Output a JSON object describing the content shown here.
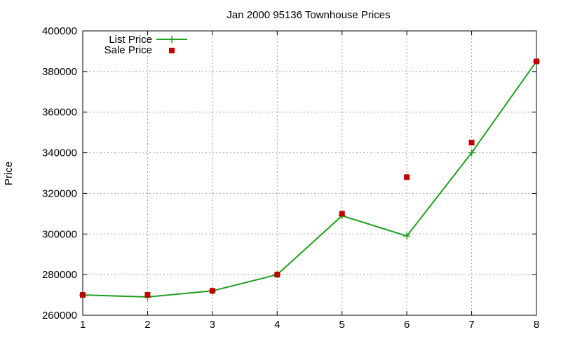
{
  "chart_data": {
    "type": "line",
    "title": "Jan 2000 95136 Townhouse Prices",
    "xlabel": "",
    "ylabel": "Price",
    "x": [
      1,
      2,
      3,
      4,
      5,
      6,
      7,
      8
    ],
    "xlim": [
      1,
      8
    ],
    "ylim": [
      260000,
      400000
    ],
    "xticks": [
      1,
      2,
      3,
      4,
      5,
      6,
      7,
      8
    ],
    "yticks": [
      260000,
      280000,
      300000,
      320000,
      340000,
      360000,
      380000,
      400000
    ],
    "grid": true,
    "legend_position": "top-left",
    "series": [
      {
        "name": "List Price",
        "style": "line-points",
        "marker": "plus",
        "color": "#1f9f1f",
        "values": [
          270000,
          269000,
          272000,
          280000,
          309000,
          299000,
          340000,
          385000
        ]
      },
      {
        "name": "Sale Price",
        "style": "points",
        "marker": "square",
        "color": "#c00000",
        "values": [
          270000,
          270000,
          272000,
          280000,
          310000,
          328000,
          345000,
          385000
        ]
      }
    ]
  }
}
